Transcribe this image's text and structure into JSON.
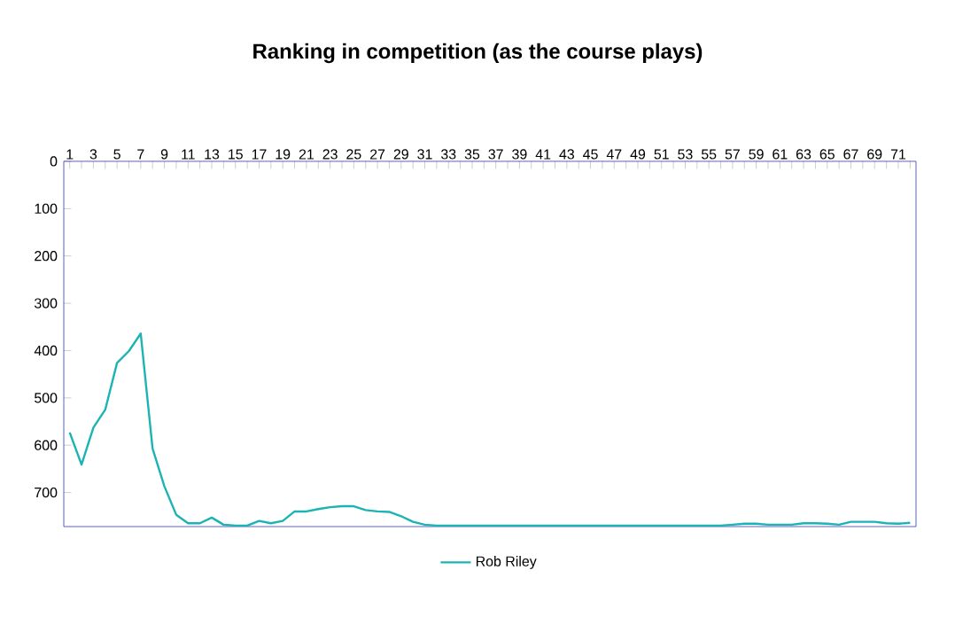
{
  "chart_data": {
    "type": "line",
    "title": "Ranking in competition (as the course plays)",
    "categories": [
      "1",
      null,
      "3",
      null,
      "5",
      null,
      "7",
      null,
      "9",
      null,
      "11",
      null,
      "13",
      null,
      "15",
      null,
      "17",
      null,
      "19",
      null,
      "21",
      null,
      "23",
      null,
      "25",
      null,
      "27",
      null,
      "29",
      null,
      "31",
      null,
      "33",
      null,
      "35",
      null,
      "37",
      null,
      "39",
      null,
      "41",
      null,
      "43",
      null,
      "45",
      null,
      "47",
      null,
      "49",
      null,
      "51",
      null,
      "53",
      null,
      "55",
      null,
      "57",
      null,
      "59",
      null,
      "61",
      null,
      "63",
      null,
      "65",
      null,
      "67",
      null,
      "69",
      null,
      "71",
      null
    ],
    "series": [
      {
        "name": "Rob Riley",
        "color": "#1bb3b3",
        "values": [
          573,
          641,
          563,
          525,
          426,
          401,
          364,
          607,
          687,
          747,
          765,
          765,
          753,
          768,
          770,
          770,
          760,
          765,
          760,
          740,
          740,
          735,
          731,
          729,
          729,
          737,
          740,
          741,
          750,
          762,
          768,
          770,
          770,
          770,
          770,
          770,
          770,
          770,
          770,
          770,
          770,
          770,
          770,
          770,
          770,
          770,
          770,
          770,
          770,
          770,
          770,
          770,
          770,
          770,
          770,
          770,
          768,
          766,
          766,
          768,
          768,
          768,
          765,
          765,
          766,
          768,
          762,
          762,
          762,
          765,
          766,
          764
        ]
      }
    ],
    "ylim": [
      772,
      0
    ],
    "yticks": [
      0,
      100,
      200,
      300,
      400,
      500,
      600,
      700
    ],
    "grid": false,
    "legend": "bottom",
    "marker": "none",
    "line_style": "solid"
  }
}
